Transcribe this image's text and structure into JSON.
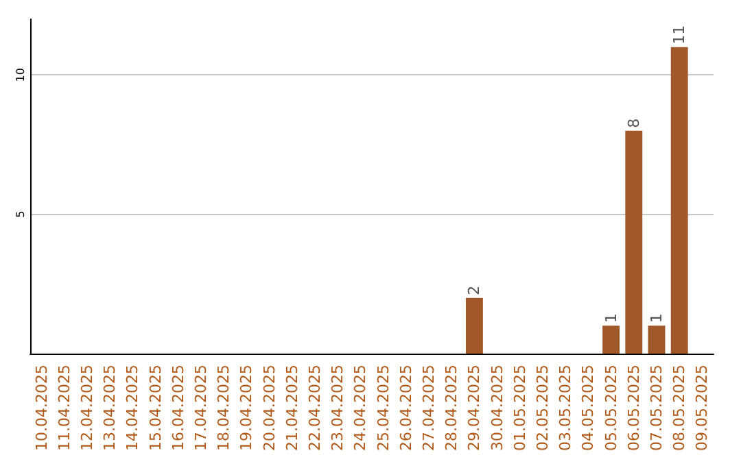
{
  "chart_data": {
    "type": "bar",
    "categories": [
      "10.04.2025",
      "11.04.2025",
      "12.04.2025",
      "13.04.2025",
      "14.04.2025",
      "15.04.2025",
      "16.04.2025",
      "17.04.2025",
      "18.04.2025",
      "19.04.2025",
      "20.04.2025",
      "21.04.2025",
      "22.04.2025",
      "23.04.2025",
      "24.04.2025",
      "25.04.2025",
      "26.04.2025",
      "27.04.2025",
      "28.04.2025",
      "29.04.2025",
      "30.04.2025",
      "01.05.2025",
      "02.05.2025",
      "03.05.2025",
      "04.05.2025",
      "05.05.2025",
      "06.05.2025",
      "07.05.2025",
      "08.05.2025",
      "09.05.2025"
    ],
    "values": [
      0,
      0,
      0,
      0,
      0,
      0,
      0,
      0,
      0,
      0,
      0,
      0,
      0,
      0,
      0,
      0,
      0,
      0,
      0,
      2,
      0,
      0,
      0,
      0,
      0,
      1,
      8,
      1,
      11,
      0
    ],
    "value_labels": [
      null,
      null,
      null,
      null,
      null,
      null,
      null,
      null,
      null,
      null,
      null,
      null,
      null,
      null,
      null,
      null,
      null,
      null,
      null,
      "2",
      null,
      null,
      null,
      null,
      null,
      "1",
      "8",
      "1",
      "11",
      null
    ],
    "color": "#a0582a",
    "ylim": [
      0,
      12
    ],
    "yticks": [
      5,
      10
    ],
    "grid": "y"
  }
}
